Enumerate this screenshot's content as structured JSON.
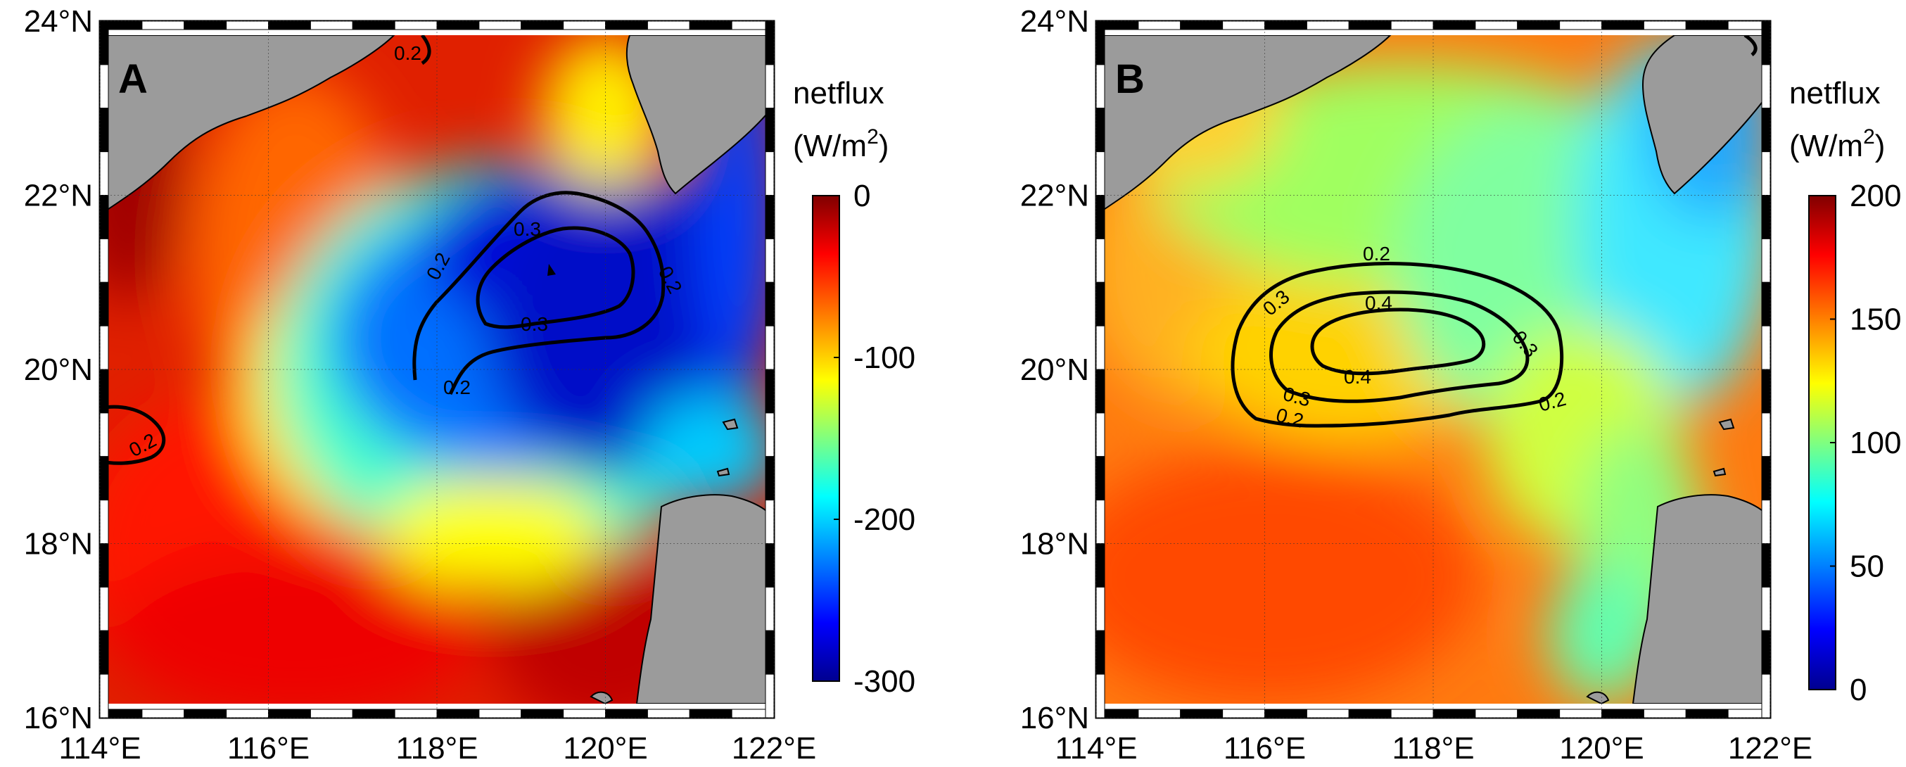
{
  "axes": {
    "lon_ticks": [
      114,
      116,
      118,
      120,
      122
    ],
    "lat_ticks": [
      16,
      18,
      20,
      22,
      24
    ],
    "lon_labels": [
      "114°E",
      "116°E",
      "118°E",
      "120°E",
      "122°E"
    ],
    "lat_labels": [
      "16°N",
      "18°N",
      "20°N",
      "22°N",
      "24°N"
    ],
    "lon_range": [
      114,
      122
    ],
    "lat_range": [
      16,
      24
    ]
  },
  "colors": {
    "land": "#9b9b9b",
    "colormap": [
      "#00008f",
      "#0000ff",
      "#00ffff",
      "#ffff00",
      "#ff0000",
      "#800000"
    ]
  },
  "panels": [
    {
      "label": "A",
      "colorbar": {
        "title_line1": "netflux",
        "title_line2": "(W/m",
        "title_sup": "2",
        "title_close": ")",
        "range": [
          -300,
          0
        ],
        "ticks": [
          "0",
          "-100",
          "-200",
          "-300"
        ]
      },
      "contours": [
        {
          "label": "0.2"
        },
        {
          "label": "0.3"
        },
        {
          "label": "0.2"
        }
      ]
    },
    {
      "label": "B",
      "colorbar": {
        "title_line1": "netflux",
        "title_line2": "(W/m",
        "title_sup": "2",
        "title_close": ")",
        "range": [
          0,
          200
        ],
        "ticks": [
          "200",
          "150",
          "100",
          "50",
          "0"
        ]
      },
      "contours": [
        {
          "label": "0.2"
        },
        {
          "label": "0.3"
        },
        {
          "label": "0.4"
        }
      ]
    }
  ]
}
